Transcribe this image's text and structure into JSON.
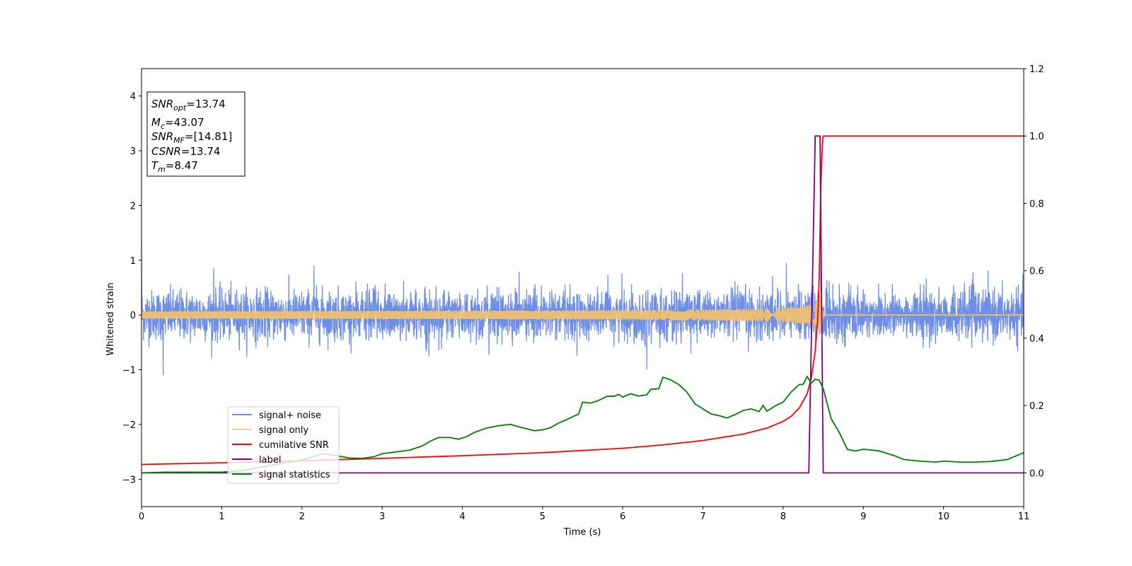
{
  "chart_data": {
    "type": "line",
    "xlabel": "Time (s)",
    "ylabel": "Whitened strain",
    "xlim": [
      0,
      11
    ],
    "ylim": [
      -3.5,
      4.5
    ],
    "y2lim": [
      -0.1,
      1.2
    ],
    "x_ticks": [
      "0",
      "1",
      "2",
      "3",
      "4",
      "5",
      "6",
      "7",
      "8",
      "9",
      "10",
      "11"
    ],
    "y_ticks": [
      "−3",
      "−2",
      "−1",
      "0",
      "1",
      "2",
      "3",
      "4"
    ],
    "y2_ticks": [
      "0.0",
      "0.2",
      "0.4",
      "0.6",
      "0.8",
      "1.0",
      "1.2"
    ],
    "annotation": {
      "lines": [
        {
          "base": "SNR",
          "sub": "opt",
          "value": "=13.74"
        },
        {
          "base": "M",
          "sub": "c",
          "value": "=43.07"
        },
        {
          "base": "SNR",
          "sub": "MF",
          "value": "=[14.81]"
        },
        {
          "base": "CSNR",
          "sub": "",
          "value": "=13.74"
        },
        {
          "base": "T",
          "sub": "m",
          "value": "=8.47"
        }
      ]
    },
    "legend_position": "lower-left",
    "series": [
      {
        "name": "signal+ noise",
        "axis": "left",
        "color": "#6f8fe6",
        "kind": "noise",
        "envelope": 0.45,
        "extremes": [
          [
            0.27,
            -1.1
          ],
          [
            0.0,
            1.55
          ],
          [
            0.9,
            0.85
          ],
          [
            2.15,
            0.9
          ],
          [
            6.3,
            -1.0
          ],
          [
            8.04,
            0.95
          ],
          [
            8.47,
            1.0
          ]
        ]
      },
      {
        "name": "signal only",
        "axis": "left",
        "color": "#f5c36a",
        "kind": "chirp",
        "merger_time": 8.47,
        "peak_amplitude": 0.3
      },
      {
        "name": "cumilative SNR",
        "axis": "right",
        "color": "#ff0000",
        "x": [
          0,
          1,
          2,
          3,
          4,
          5,
          6,
          6.5,
          7,
          7.5,
          7.8,
          8.0,
          8.1,
          8.2,
          8.3,
          8.35,
          8.4,
          8.43,
          8.45,
          8.47,
          8.49,
          8.5,
          11
        ],
        "y": [
          0.025,
          0.03,
          0.036,
          0.043,
          0.051,
          0.06,
          0.073,
          0.083,
          0.096,
          0.115,
          0.133,
          0.153,
          0.168,
          0.192,
          0.235,
          0.28,
          0.36,
          0.45,
          0.58,
          0.85,
          0.98,
          1.0,
          1.0
        ]
      },
      {
        "name": "label",
        "axis": "right",
        "color": "#800080",
        "x": [
          0,
          8.32,
          8.4,
          8.46,
          8.5,
          11
        ],
        "y": [
          0,
          0,
          1,
          1,
          0,
          0
        ]
      },
      {
        "name": "signal statistics",
        "axis": "right",
        "color": "#008000",
        "x": [
          0,
          0.3,
          1,
          1.3,
          1.6,
          1.8,
          2.0,
          2.1,
          2.25,
          2.4,
          2.6,
          2.75,
          2.9,
          3.0,
          3.2,
          3.35,
          3.5,
          3.6,
          3.7,
          3.85,
          3.95,
          4.05,
          4.15,
          4.3,
          4.45,
          4.6,
          4.7,
          4.9,
          5.0,
          5.1,
          5.2,
          5.3,
          5.45,
          5.5,
          5.6,
          5.7,
          5.8,
          5.9,
          5.95,
          6.0,
          6.1,
          6.2,
          6.3,
          6.35,
          6.45,
          6.5,
          6.6,
          6.7,
          6.8,
          6.9,
          7.0,
          7.1,
          7.2,
          7.3,
          7.4,
          7.5,
          7.6,
          7.7,
          7.75,
          7.8,
          7.9,
          8.0,
          8.1,
          8.2,
          8.25,
          8.3,
          8.35,
          8.4,
          8.45,
          8.5,
          8.6,
          8.7,
          8.8,
          8.9,
          9.0,
          9.1,
          9.2,
          9.4,
          9.5,
          9.7,
          9.9,
          10.0,
          10.2,
          10.4,
          10.6,
          10.8,
          11.0
        ],
        "y": [
          0.0,
          0.002,
          0.002,
          0.008,
          0.022,
          0.03,
          0.038,
          0.045,
          0.057,
          0.052,
          0.044,
          0.043,
          0.048,
          0.057,
          0.063,
          0.068,
          0.08,
          0.094,
          0.105,
          0.105,
          0.1,
          0.107,
          0.12,
          0.133,
          0.14,
          0.144,
          0.137,
          0.125,
          0.128,
          0.134,
          0.148,
          0.158,
          0.175,
          0.21,
          0.207,
          0.215,
          0.227,
          0.228,
          0.233,
          0.225,
          0.235,
          0.228,
          0.232,
          0.248,
          0.25,
          0.284,
          0.276,
          0.262,
          0.24,
          0.205,
          0.19,
          0.175,
          0.17,
          0.163,
          0.173,
          0.185,
          0.19,
          0.182,
          0.2,
          0.183,
          0.199,
          0.21,
          0.24,
          0.262,
          0.263,
          0.286,
          0.266,
          0.278,
          0.275,
          0.25,
          0.16,
          0.12,
          0.07,
          0.065,
          0.07,
          0.068,
          0.065,
          0.05,
          0.04,
          0.035,
          0.032,
          0.035,
          0.032,
          0.032,
          0.034,
          0.04,
          0.06
        ]
      }
    ]
  }
}
